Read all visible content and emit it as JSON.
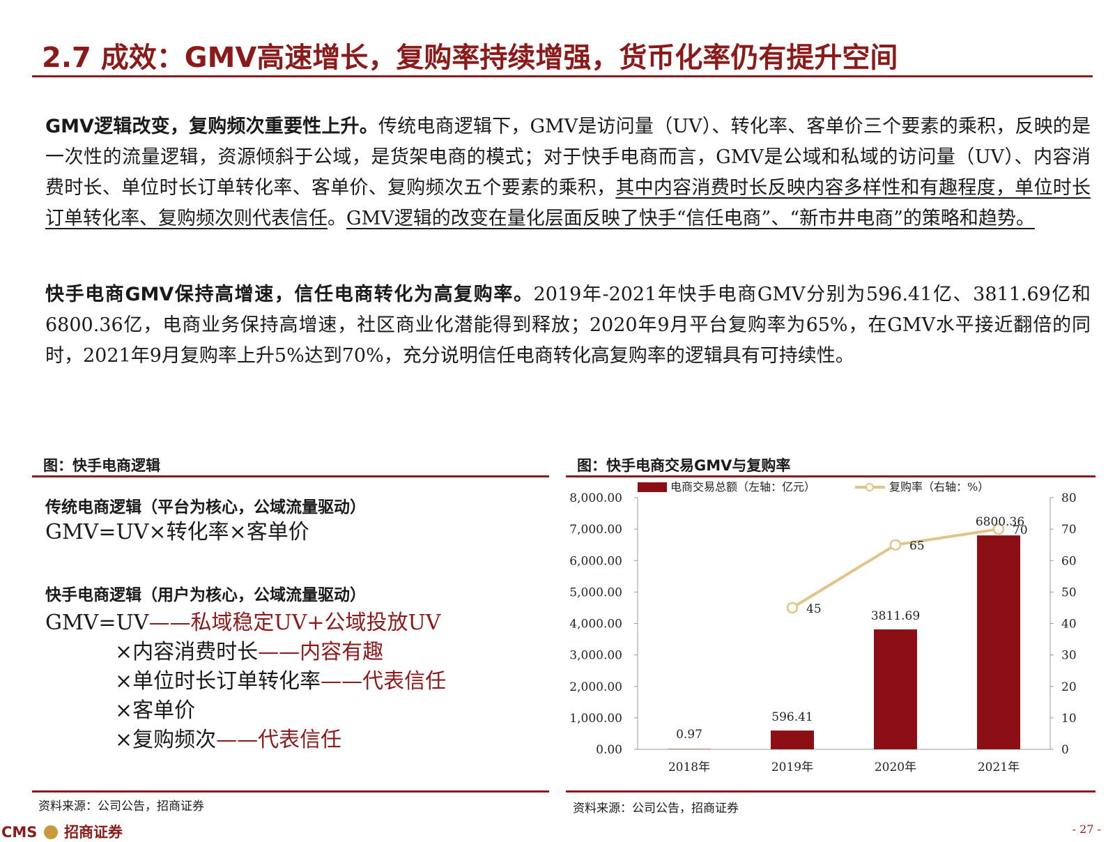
{
  "header": {
    "title": "2.7 成效：GMV高速增长，复购率持续增强，货币化率仍有提升空间"
  },
  "paragraphs": {
    "p1": {
      "lead": "GMV逻辑改变，复购频次重要性上升。",
      "text1": "传统电商逻辑下，GMV是访问量（UV）、转化率、客单价三个要素的乘积，反映的是一次性的流量逻辑，资源倾斜于公域，是货架电商的模式；对于快手电商而言，GMV是公域和私域的访问量（UV）、内容消费时长、单位时长订单转化率、客单价、复购频次五个要素的乘积，",
      "underline1": "其中内容消费时长反映内容多样性和有趣程度，单位时长订单转化率、复购频次则代表信任",
      "text2": "。",
      "underline2": "GMV逻辑的改变在量化层面反映了快手“信任电商”、“新市井电商”的策略和趋势。"
    },
    "p2": {
      "lead": "快手电商GMV保持高增速，信任电商转化为高复购率。",
      "text": "2019年-2021年快手电商GMV分别为596.41亿、3811.69亿和6800.36亿，电商业务保持高增速，社区商业化潜能得到释放；2020年9月平台复购率为65%，在GMV水平接近翻倍的同时，2021年9月复购率上升5%达到70%，充分说明信任电商转化高复购率的逻辑具有可持续性。"
    }
  },
  "left_figure": {
    "label": "图：快手电商逻辑",
    "traditional_head": "传统电商逻辑（平台为核心，公域流量驱动）",
    "traditional_formula": "GMV=UV×转化率×客单价",
    "kuaishou_head": "快手电商逻辑（用户为核心，公域流量驱动）",
    "lines": [
      {
        "main": "GMV=UV",
        "note": "——私域稳定UV+公域投放UV"
      },
      {
        "main": "×内容消费时长",
        "note": "——内容有趣"
      },
      {
        "main": "×单位时长订单转化率",
        "note": "——代表信任"
      },
      {
        "main": "×客单价",
        "note": ""
      },
      {
        "main": "×复购频次",
        "note": "——代表信任"
      }
    ],
    "source": "资料来源：公司公告，招商证券"
  },
  "right_figure": {
    "label": "图：快手电商交易GMV与复购率",
    "source": "资料来源：公司公告，招商证券"
  },
  "chart_data": {
    "type": "bar",
    "categories": [
      "2018年",
      "2019年",
      "2020年",
      "2021年"
    ],
    "series": [
      {
        "name": "电商交易总额（左轴：亿元）",
        "type": "bar",
        "axis": "left",
        "values": [
          0.97,
          596.41,
          3811.69,
          6800.36
        ],
        "labels": [
          "0.97",
          "596.41",
          "3811.69",
          "6800.36"
        ],
        "color": "#8b0f14"
      },
      {
        "name": "复购率（右轴：%）",
        "type": "line",
        "axis": "right",
        "values": [
          null,
          45,
          65,
          70
        ],
        "labels": [
          "",
          "45",
          "65",
          "70"
        ],
        "color": "#e0c48a"
      }
    ],
    "y_left": {
      "range": [
        0,
        8000
      ],
      "ticks": [
        "0.00",
        "1,000.00",
        "2,000.00",
        "3,000.00",
        "4,000.00",
        "5,000.00",
        "6,000.00",
        "7,000.00",
        "8,000.00"
      ]
    },
    "y_right": {
      "range": [
        0,
        80
      ],
      "ticks": [
        "0",
        "10",
        "20",
        "30",
        "40",
        "50",
        "60",
        "70",
        "80"
      ]
    },
    "legend": "top",
    "grid": false
  },
  "footer": {
    "brand": "CMS",
    "brand_cn": "招商证券",
    "page": "- 27 -"
  },
  "colors": {
    "accent": "#8b1a1a",
    "bar": "#8b0f14",
    "line": "#e0c48a"
  }
}
